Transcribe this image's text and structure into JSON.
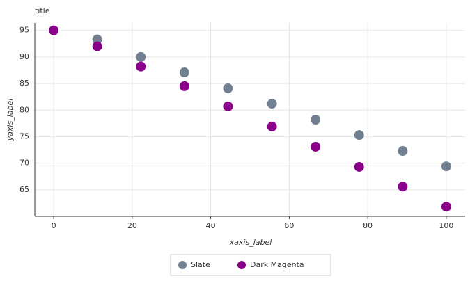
{
  "chart_data": {
    "type": "scatter",
    "title": "title",
    "x_label": "xaxis_label",
    "y_label": "yaxis_label",
    "x": [
      0,
      11.1,
      22.2,
      33.3,
      44.4,
      55.6,
      66.7,
      77.8,
      88.9,
      100
    ],
    "series": [
      {
        "name": "Slate",
        "color": "#708090",
        "values": [
          95,
          93.3,
          90.0,
          87.1,
          84.1,
          81.2,
          78.2,
          75.3,
          72.3,
          69.4
        ]
      },
      {
        "name": "Dark Magenta",
        "color": "#8b008b",
        "values": [
          95,
          92.0,
          88.2,
          84.5,
          80.7,
          76.9,
          73.1,
          69.3,
          65.6,
          61.8
        ]
      }
    ],
    "xlim": [
      -4.8,
      104.8
    ],
    "xticks": [
      0,
      20,
      40,
      60,
      80,
      100
    ],
    "ylim": [
      60.0,
      96.4
    ],
    "yticks": [
      65,
      70,
      75,
      80,
      85,
      90,
      95
    ],
    "grid": true,
    "legend": "bottom"
  }
}
